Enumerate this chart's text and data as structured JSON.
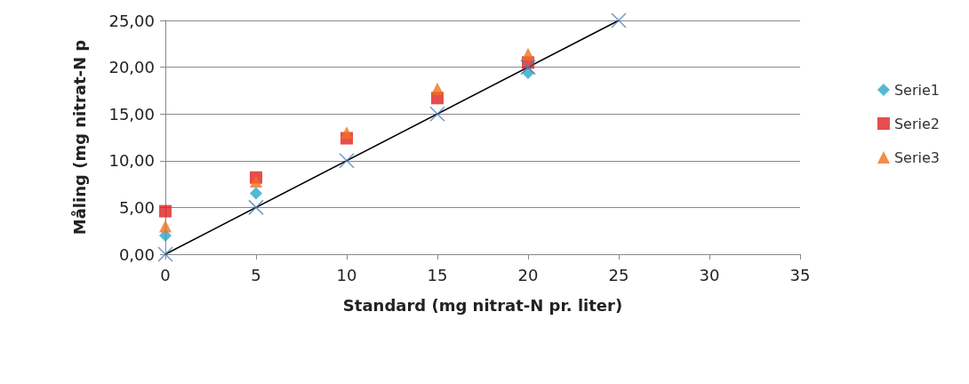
{
  "chart_data": {
    "type": "scatter",
    "xlabel": "Standard (mg nitrat-N pr. liter)",
    "ylabel": "Måling (mg nitrat-N p",
    "xlim": [
      0,
      35
    ],
    "xticks": [
      0,
      5,
      10,
      15,
      20,
      25,
      30,
      35
    ],
    "ylim": [
      0,
      25
    ],
    "yticks": [
      {
        "value": 0,
        "label": "0,00"
      },
      {
        "value": 5,
        "label": "5,00"
      },
      {
        "value": 10,
        "label": "10,00"
      },
      {
        "value": 15,
        "label": "15,00"
      },
      {
        "value": 20,
        "label": "20,00"
      },
      {
        "value": 25,
        "label": "25,00"
      }
    ],
    "grid": "y",
    "legend": "right",
    "series": [
      {
        "name": "Serie1",
        "color": "#2aa6c4",
        "marker": "diamond",
        "x": [
          0,
          5,
          10,
          15,
          20
        ],
        "values": [
          2.0,
          6.5,
          null,
          null,
          19.4
        ]
      },
      {
        "name": "Serie2",
        "color": "#e0201f",
        "marker": "square",
        "x": [
          0,
          5,
          10,
          15,
          20
        ],
        "values": [
          4.6,
          8.2,
          12.4,
          16.7,
          20.5
        ]
      },
      {
        "name": "Serie3",
        "color": "#f07020",
        "marker": "triangle",
        "x": [
          0,
          5,
          10,
          15,
          20
        ],
        "values": [
          3.0,
          7.8,
          13.0,
          17.7,
          21.4
        ]
      },
      {
        "color": "#4a7ebb",
        "marker": "cross",
        "x": [
          0,
          5,
          10,
          15,
          20,
          25
        ],
        "values": [
          0,
          5,
          10,
          15,
          20,
          25
        ]
      },
      {
        "type": "line",
        "color": "#000000",
        "marker": "none",
        "line_style": "solid",
        "x": [
          0,
          25
        ],
        "values": [
          0,
          25
        ]
      }
    ]
  }
}
